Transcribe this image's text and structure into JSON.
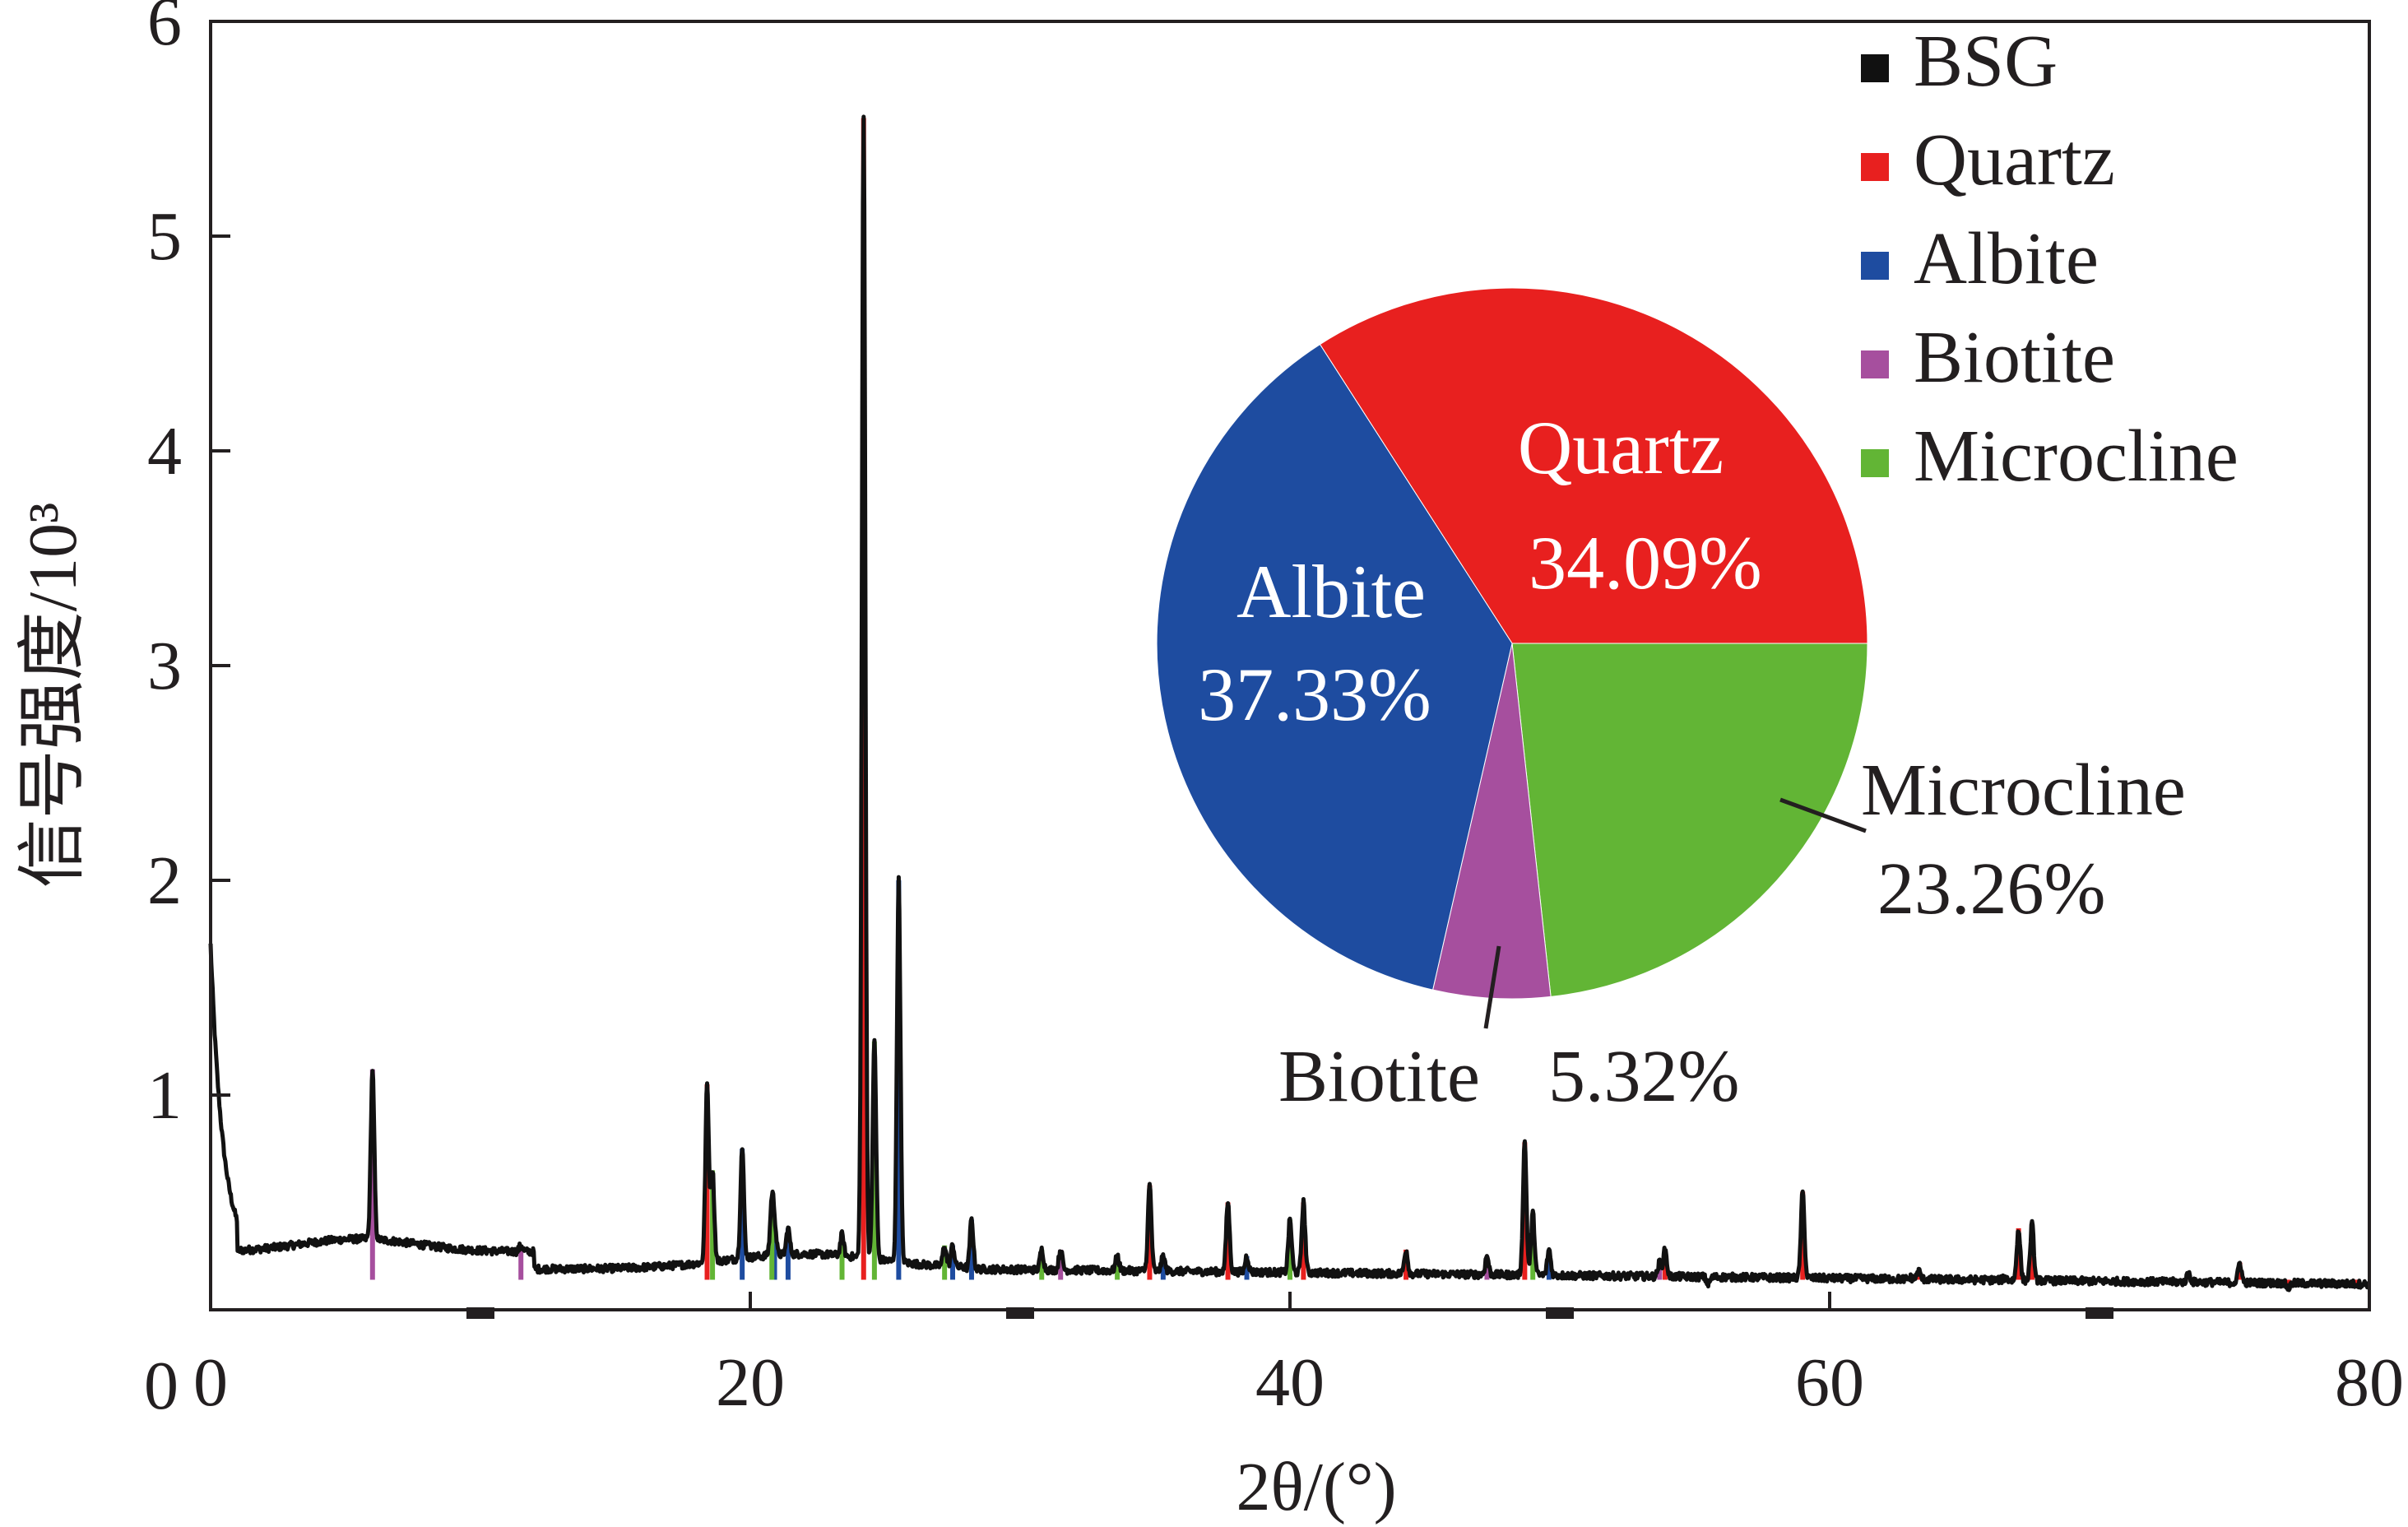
{
  "chart_data": [
    {
      "type": "line",
      "xlabel": "2θ/(°)",
      "ylabel": "信号强度/10³",
      "xlim": [
        0,
        80
      ],
      "ylim": [
        0,
        6
      ],
      "x_ticks": [
        "0",
        "20",
        "40",
        "60",
        "80"
      ],
      "y_ticks": [
        "1",
        "2",
        "3",
        "4",
        "5",
        "6"
      ],
      "legend": {
        "position": "top-right"
      },
      "series": [
        {
          "name": "BSG",
          "color": "#111111",
          "kind": "pattern"
        },
        {
          "name": "Quartz",
          "color": "#e8201f",
          "kind": "peaks",
          "peaks": [
            [
              18.4,
              1.05
            ],
            [
              24.2,
              5.55
            ],
            [
              34.8,
              0.58
            ],
            [
              37.7,
              0.5
            ],
            [
              40.5,
              0.5
            ],
            [
              44.3,
              0.28
            ],
            [
              48.7,
              0.78
            ],
            [
              53.9,
              0.28
            ],
            [
              59.0,
              0.55
            ],
            [
              63.3,
              0.18
            ],
            [
              67.0,
              0.38
            ],
            [
              67.5,
              0.4
            ],
            [
              73.3,
              0.17
            ],
            [
              75.2,
              0.22
            ],
            [
              77.0,
              0.1
            ],
            [
              79.5,
              0.12
            ]
          ]
        },
        {
          "name": "Albite",
          "color": "#1e4ca0",
          "kind": "peaks",
          "peaks": [
            [
              19.7,
              0.75
            ],
            [
              20.9,
              0.38
            ],
            [
              21.4,
              0.38
            ],
            [
              25.5,
              2.0
            ],
            [
              27.5,
              0.3
            ],
            [
              28.2,
              0.42
            ],
            [
              35.3,
              0.25
            ],
            [
              38.4,
              0.25
            ],
            [
              49.6,
              0.28
            ],
            [
              63.0,
              0.15
            ]
          ]
        },
        {
          "name": "Biotite",
          "color": "#a64f9e",
          "kind": "peaks",
          "peaks": [
            [
              6.0,
              1.12
            ],
            [
              11.5,
              0.3
            ],
            [
              31.5,
              0.28
            ],
            [
              47.3,
              0.25
            ],
            [
              53.7,
              0.22
            ]
          ]
        },
        {
          "name": "Microcline",
          "color": "#62b535",
          "kind": "peaks",
          "peaks": [
            [
              18.6,
              0.65
            ],
            [
              20.8,
              0.5
            ],
            [
              23.4,
              0.35
            ],
            [
              24.6,
              1.25
            ],
            [
              27.2,
              0.3
            ],
            [
              30.8,
              0.28
            ],
            [
              33.6,
              0.25
            ],
            [
              40.0,
              0.42
            ],
            [
              49.0,
              0.45
            ],
            [
              55.5,
              0.12
            ],
            [
              66.5,
              0.15
            ]
          ]
        }
      ]
    },
    {
      "type": "pie",
      "slices": [
        {
          "name": "Quartz",
          "value": 34.09,
          "label": "34.09%",
          "color": "#e8201f"
        },
        {
          "name": "Microcline",
          "value": 23.26,
          "label": "23.26%",
          "color": "#62b535"
        },
        {
          "name": "Biotite",
          "value": 5.32,
          "label": "5.32%",
          "color": "#a64f9e"
        },
        {
          "name": "Albite",
          "value": 37.33,
          "label": "37.33%",
          "color": "#1e4ca0"
        }
      ]
    }
  ]
}
